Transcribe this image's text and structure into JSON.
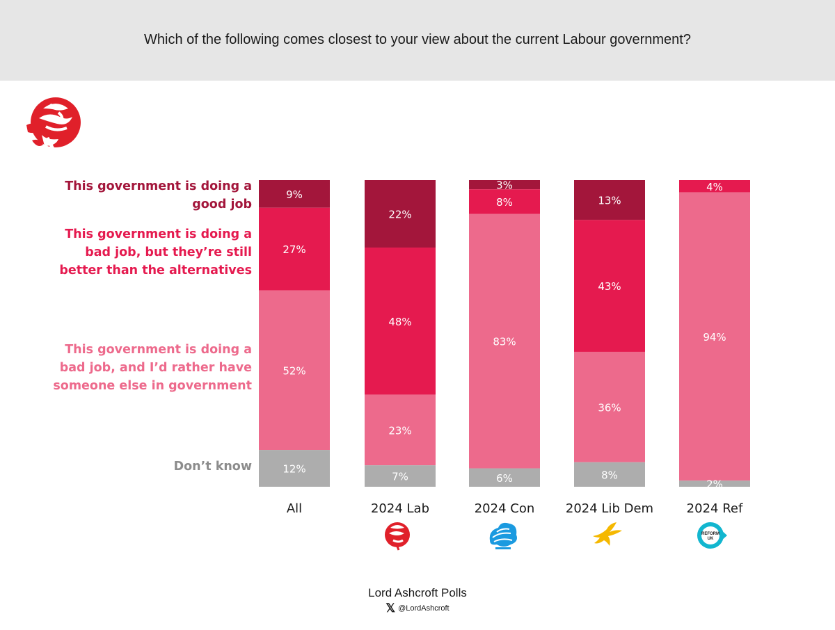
{
  "header": {
    "title": "Which of the following comes closest to your view about the current Labour government?"
  },
  "colors": {
    "good_job": "#a3163b",
    "bad_but_better": "#e51a4f",
    "bad_rather_else": "#ed6a8c",
    "dont_know": "#adadad",
    "header_bg": "#e6e6e6"
  },
  "chart_data": {
    "type": "bar",
    "stacked": true,
    "percent_stacked": true,
    "title": "Which of the following comes closest to your view about the current Labour government?",
    "categories": [
      "All",
      "2024 Lab",
      "2024 Con",
      "2024 Lib Dem",
      "2024 Ref"
    ],
    "series": [
      {
        "name": "This government is doing a good job",
        "values": [
          9,
          22,
          3,
          13,
          0
        ],
        "color": "#a3163b"
      },
      {
        "name": "This government is doing a bad job, but they’re still better than the alternatives",
        "values": [
          27,
          48,
          8,
          43,
          4
        ],
        "color": "#e51a4f"
      },
      {
        "name": "This government is doing a bad job, and I’d rather have someone else in government",
        "values": [
          52,
          23,
          83,
          36,
          94
        ],
        "color": "#ed6a8c"
      },
      {
        "name": "Don’t know",
        "values": [
          12,
          7,
          6,
          8,
          2
        ],
        "color": "#adadad"
      }
    ],
    "ylim": [
      0,
      100
    ],
    "legend_position": "left"
  },
  "legend": {
    "good": "This government is doing a\ngood job",
    "bad_better": "This government is doing a\nbad job, but they’re still\nbetter than the alternatives",
    "bad_else": "This government is doing a\nbad job, and I’d rather have\nsomeone else in government",
    "dont_know": "Don’t know"
  },
  "icons": [
    "labour-rose-icon",
    "conservative-tree-icon",
    "libdem-bird-icon",
    "reform-uk-icon"
  ],
  "reform_icon_text": "REFORM UK",
  "footer": {
    "name": "Lord Ashcroft Polls",
    "x_glyph": "𝕏",
    "handle": "@LordAshcroft"
  }
}
